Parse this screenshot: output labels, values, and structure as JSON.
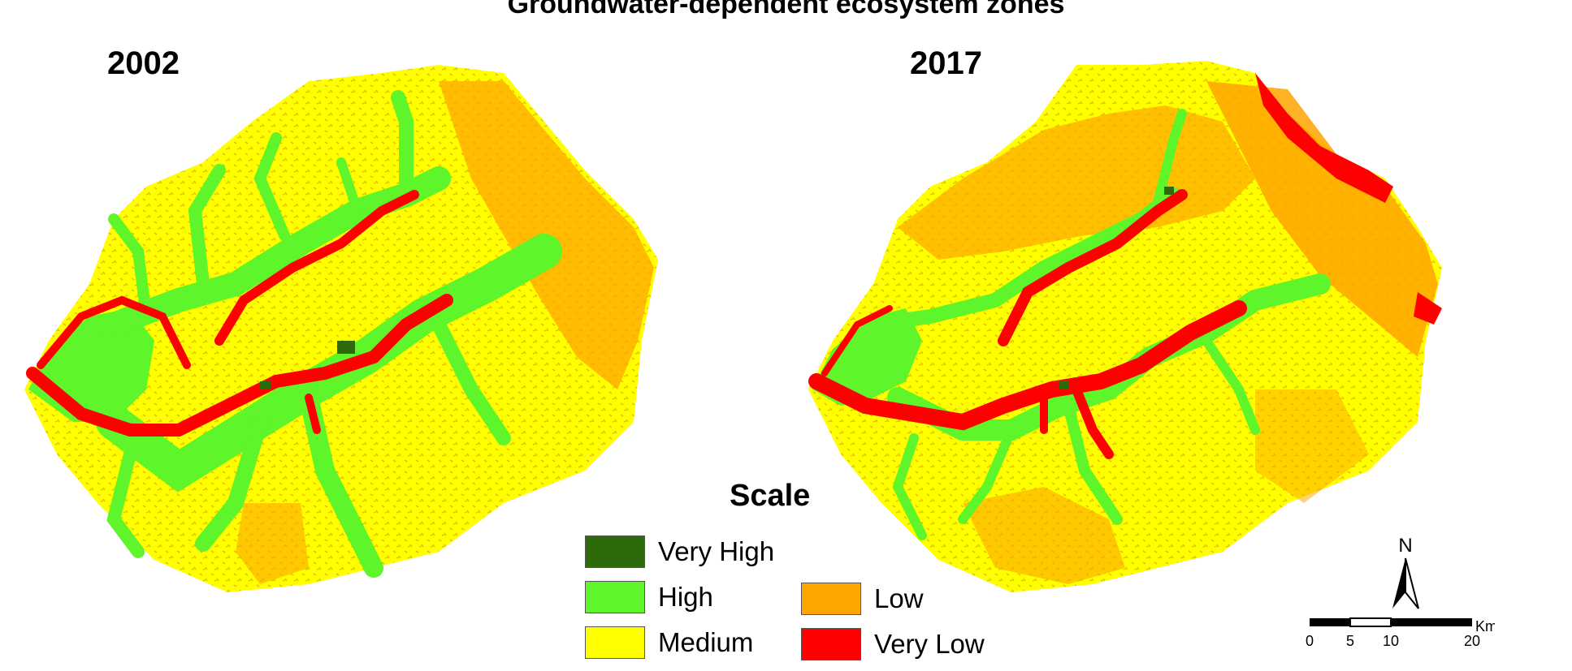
{
  "title": "Groundwater-dependent ecosystem zones",
  "maps": [
    {
      "year": "2002"
    },
    {
      "year": "2017"
    }
  ],
  "legend": {
    "title": "Scale",
    "items": [
      {
        "label": "Very High",
        "color": "#2d6a0a"
      },
      {
        "label": "High",
        "color": "#5ef52a"
      },
      {
        "label": "Medium",
        "color": "#ffff00"
      },
      {
        "label": "Low",
        "color": "#ffa500"
      },
      {
        "label": "Very Low",
        "color": "#ff0000"
      }
    ]
  },
  "north_arrow": {
    "label": "N"
  },
  "scale_bar": {
    "ticks": [
      "0",
      "5",
      "10",
      "20"
    ],
    "unit": "Km"
  }
}
